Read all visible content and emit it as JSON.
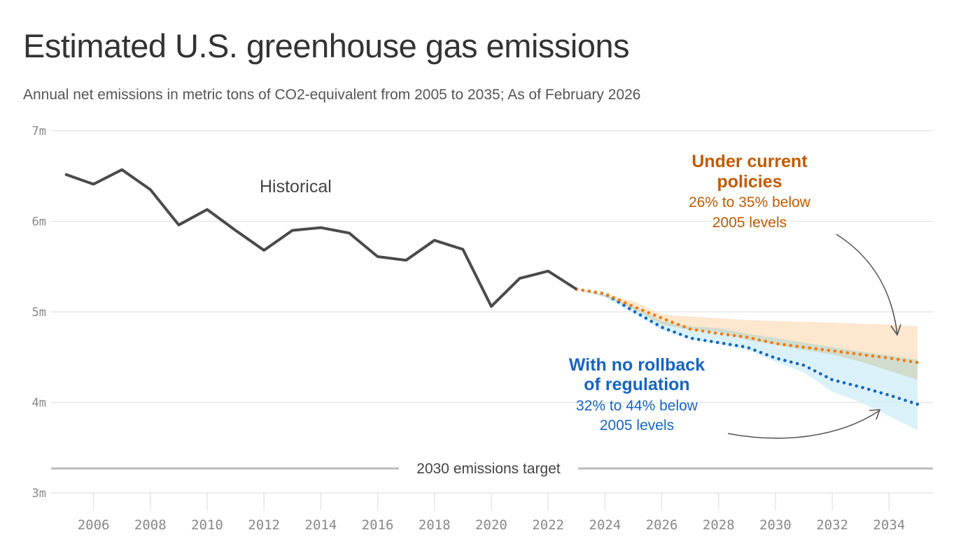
{
  "chart_data": {
    "type": "line",
    "title": "Estimated U.S. greenhouse gas emissions",
    "subtitle": "Annual net emissions in metric tons of CO2-equivalent from 2005 to 2035; As of February 2026",
    "ylim": [
      3,
      7
    ],
    "xlim": [
      2005,
      2035
    ],
    "y_ticks": [
      "7m",
      "6m",
      "5m",
      "4m",
      "3m"
    ],
    "y_tick_values": [
      7,
      6,
      5,
      4,
      3
    ],
    "x_ticks": [
      "2006",
      "2008",
      "2010",
      "2012",
      "2014",
      "2016",
      "2018",
      "2020",
      "2022",
      "2024",
      "2026",
      "2028",
      "2030",
      "2032",
      "2034"
    ],
    "grid": "horizontal",
    "series": [
      {
        "name": "Historical",
        "color": "#4a4a4a",
        "style": "solid",
        "x": [
          2005,
          2006,
          2007,
          2008,
          2009,
          2010,
          2011,
          2012,
          2013,
          2014,
          2015,
          2016,
          2017,
          2018,
          2019,
          2020,
          2021,
          2022,
          2023
        ],
        "y": [
          6.52,
          6.41,
          6.57,
          6.35,
          5.96,
          6.13,
          5.9,
          5.68,
          5.9,
          5.93,
          5.87,
          5.61,
          5.57,
          5.79,
          5.69,
          5.06,
          5.37,
          5.45,
          5.25
        ]
      },
      {
        "name": "Under current policies",
        "color": "#f47b0f",
        "style": "dotted",
        "x": [
          2023,
          2024,
          2025,
          2026,
          2027,
          2028,
          2029,
          2030,
          2031,
          2032,
          2033,
          2034,
          2035
        ],
        "y": [
          5.25,
          5.2,
          5.06,
          4.93,
          4.81,
          4.76,
          4.72,
          4.65,
          4.61,
          4.57,
          4.53,
          4.49,
          4.44
        ],
        "band_upper": [
          5.25,
          5.19,
          5.12,
          4.97,
          4.95,
          4.93,
          4.91,
          4.9,
          4.89,
          4.88,
          4.87,
          4.86,
          4.84
        ],
        "band_lower": [
          5.25,
          5.17,
          5.03,
          4.86,
          4.8,
          4.78,
          4.69,
          4.64,
          4.58,
          4.53,
          4.45,
          4.35,
          4.25
        ],
        "band_color": "#fde3c6"
      },
      {
        "name": "With no rollback of regulation",
        "color": "#1565c0",
        "style": "dotted",
        "x": [
          2023,
          2024,
          2025,
          2026,
          2027,
          2028,
          2029,
          2030,
          2031,
          2032,
          2033,
          2034,
          2035
        ],
        "y": [
          5.25,
          5.2,
          5.01,
          4.83,
          4.71,
          4.66,
          4.61,
          4.49,
          4.41,
          4.25,
          4.17,
          4.08,
          3.98
        ],
        "band_upper": [
          5.25,
          5.19,
          5.06,
          4.9,
          4.84,
          4.82,
          4.76,
          4.71,
          4.66,
          4.61,
          4.56,
          4.52,
          4.47
        ],
        "band_lower": [
          5.25,
          5.16,
          4.98,
          4.8,
          4.7,
          4.64,
          4.58,
          4.45,
          4.33,
          4.12,
          4.0,
          3.85,
          3.69
        ],
        "band_color": "#d3eef8"
      }
    ],
    "reference_line": {
      "label": "2030 emissions target",
      "value": 3.27,
      "color": "#bbbbbb"
    },
    "annotations": {
      "historical": "Historical",
      "current_title_1": "Under current",
      "current_title_2": "policies",
      "current_range_1": "26% to 35% below",
      "current_range_2": "2005 levels",
      "norollback_title_1": "With no rollback",
      "norollback_title_2": "of regulation",
      "norollback_range_1": "32% to 44% below",
      "norollback_range_2": "2005 levels"
    },
    "overlap_color": "#cfd9c8"
  }
}
